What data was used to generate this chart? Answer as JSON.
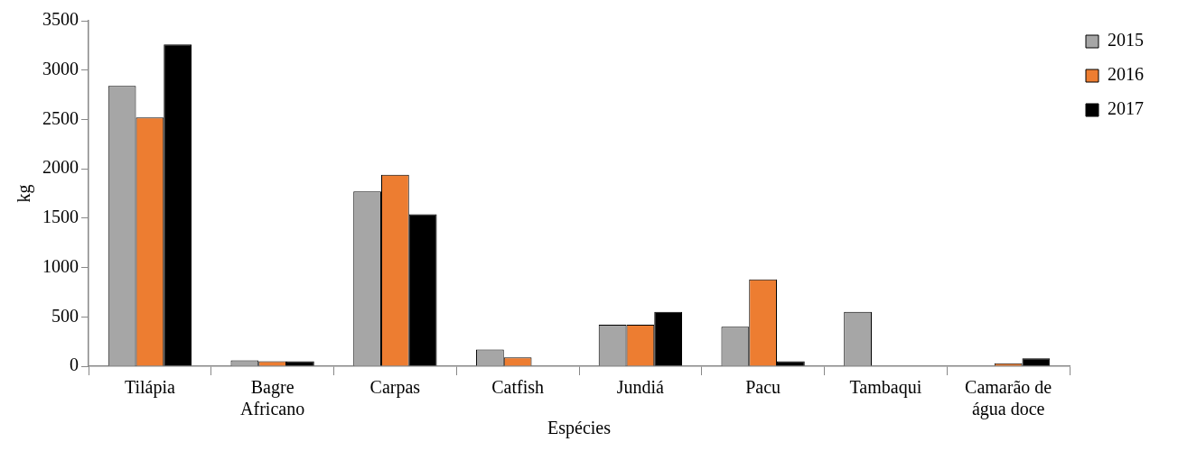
{
  "chart_data": {
    "type": "bar",
    "xlabel": "Espécies",
    "ylabel": "kg",
    "categories": [
      "Tilápia",
      "Bagre Africano",
      "Carpas",
      "Catfish",
      "Jundiá",
      "Pacu",
      "Tambaqui",
      "Camarão de água doce"
    ],
    "series": [
      {
        "name": "2015",
        "color": "#a6a6a6",
        "values": [
          2840,
          60,
          1770,
          170,
          420,
          400,
          550,
          null
        ]
      },
      {
        "name": "2016",
        "color": "#ed7d31",
        "values": [
          2520,
          50,
          1940,
          90,
          420,
          880,
          null,
          30
        ]
      },
      {
        "name": "2017",
        "color": "#000000",
        "values": [
          3260,
          50,
          1540,
          null,
          550,
          50,
          null,
          80
        ]
      }
    ],
    "ylim": [
      0,
      3500
    ],
    "yticks": [
      0,
      500,
      1000,
      1500,
      2000,
      2500,
      3000,
      3500
    ],
    "grid": false,
    "legend": "top right"
  }
}
